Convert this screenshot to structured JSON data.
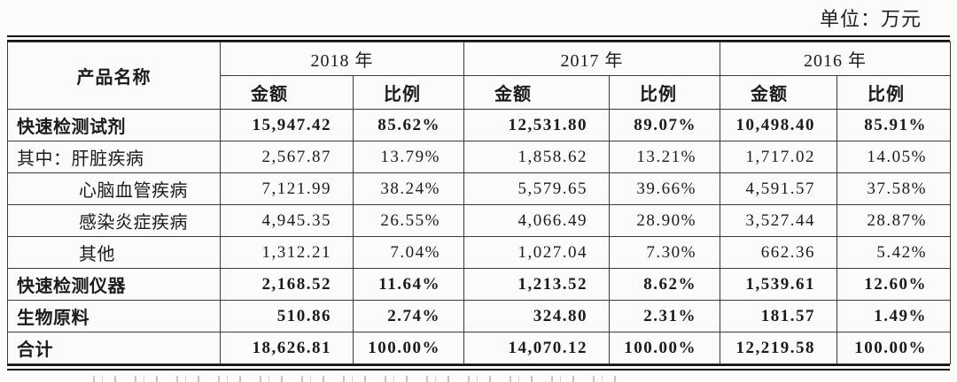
{
  "unit_label": "单位：万元",
  "table": {
    "product_header": "产品名称",
    "year_groups": [
      {
        "year": "2018 年",
        "amount_label": "金额",
        "ratio_label": "比例"
      },
      {
        "year": "2017 年",
        "amount_label": "金额",
        "ratio_label": "比例"
      },
      {
        "year": "2016 年",
        "amount_label": "金额",
        "ratio_label": "比例"
      }
    ],
    "rows": [
      {
        "name": "快速检测试剂",
        "bold": true,
        "indent": 0,
        "values": [
          "15,947.42",
          "85.62%",
          "12,531.80",
          "89.07%",
          "10,498.40",
          "85.91%"
        ]
      },
      {
        "name": "其中：肝脏疾病",
        "bold": false,
        "indent": 0,
        "values": [
          "2,567.87",
          "13.79%",
          "1,858.62",
          "13.21%",
          "1,717.02",
          "14.05%"
        ]
      },
      {
        "name": "心脑血管疾病",
        "bold": false,
        "indent": 1,
        "values": [
          "7,121.99",
          "38.24%",
          "5,579.65",
          "39.66%",
          "4,591.57",
          "37.58%"
        ]
      },
      {
        "name": "感染炎症疾病",
        "bold": false,
        "indent": 1,
        "values": [
          "4,945.35",
          "26.55%",
          "4,066.49",
          "28.90%",
          "3,527.44",
          "28.87%"
        ]
      },
      {
        "name": "其他",
        "bold": false,
        "indent": 1,
        "values": [
          "1,312.21",
          "7.04%",
          "1,027.04",
          "7.30%",
          "662.36",
          "5.42%"
        ]
      },
      {
        "name": "快速检测仪器",
        "bold": true,
        "indent": 0,
        "values": [
          "2,168.52",
          "11.64%",
          "1,213.52",
          "8.62%",
          "1,539.61",
          "12.60%"
        ]
      },
      {
        "name": "生物原料",
        "bold": true,
        "indent": 0,
        "values": [
          "510.86",
          "2.74%",
          "324.80",
          "2.31%",
          "181.57",
          "1.49%"
        ]
      },
      {
        "name": "合计",
        "bold": true,
        "indent": 0,
        "values": [
          "18,626.81",
          "100.00%",
          "14,070.12",
          "100.00%",
          "12,219.58",
          "100.00%"
        ]
      }
    ]
  }
}
